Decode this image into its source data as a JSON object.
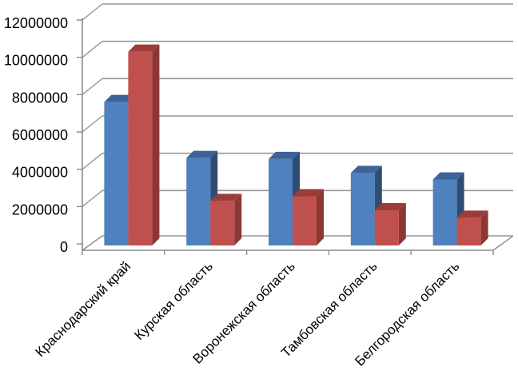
{
  "chart_data": {
    "type": "bar",
    "style": "3d-clustered-column",
    "title": "",
    "categories": [
      "Краснодарский край",
      "Курская область",
      "Воронежская область",
      "Тамбовская область",
      "Белгородская область"
    ],
    "series": [
      {
        "color_front": "#4E81BD",
        "color_top": "#3C6498",
        "color_side": "#2E4D74",
        "values": [
          7600000,
          4600000,
          4550000,
          3800000,
          3450000
        ]
      },
      {
        "color_front": "#C0504D",
        "color_top": "#9C3C39",
        "color_side": "#8B3734",
        "values": [
          10300000,
          2300000,
          2550000,
          1800000,
          1400000
        ]
      }
    ],
    "ylim": [
      0,
      12000000
    ],
    "ytick_values": [
      0,
      2000000,
      4000000,
      6000000,
      8000000,
      10000000,
      12000000
    ],
    "ytick_labels": [
      "0",
      "2000000",
      "4000000",
      "6000000",
      "8000000",
      "10000000",
      "12000000"
    ],
    "grid": true,
    "legend": "none",
    "axis_color": "#8C8C8C",
    "grid_color": "#969696",
    "text_color": "#000000",
    "background": "#FFFFFF"
  }
}
